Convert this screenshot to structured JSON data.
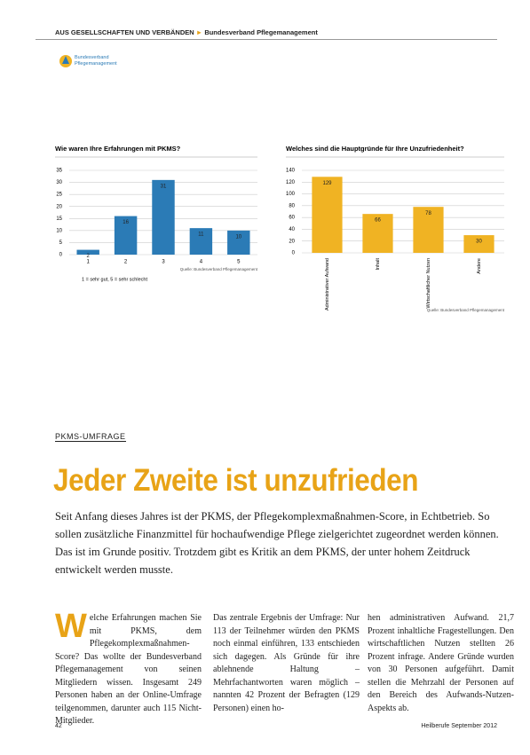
{
  "header": {
    "section": "AUS GESELLSCHAFTEN UND VERBÄNDEN",
    "subsection": "Bundesverband Pflegemanagement"
  },
  "logo": {
    "text": "Bundesverband Pflegemanagement"
  },
  "charts": [
    {
      "type": "bar",
      "title": "Wie waren Ihre Erfahrungen mit PKMS?",
      "categories": [
        "1",
        "2",
        "3",
        "4",
        "5"
      ],
      "values": [
        2,
        16,
        31,
        11,
        10
      ],
      "color": "#2b7bb6",
      "ylim": [
        0,
        35
      ],
      "yticks": [
        0,
        5,
        10,
        15,
        20,
        25,
        30,
        35
      ],
      "grid": true,
      "note": "1 = sehr gut, 5 = sehr schlecht",
      "source": "Quelle: Bundesverband Pflegemanagement"
    },
    {
      "type": "bar",
      "title": "Welches sind die Hauptgründe für Ihre Unzufriedenheit?",
      "categories": [
        "Administrativer Aufwand",
        "Inhalt",
        "Wirtschaftlicher Nutzen",
        "Andere"
      ],
      "values": [
        129,
        66,
        78,
        30
      ],
      "color": "#f0b323",
      "ylim": [
        0,
        140
      ],
      "yticks": [
        0,
        20,
        40,
        60,
        80,
        100,
        120,
        140
      ],
      "grid": true,
      "source": "Quelle: Bundesverband Pflegemanagement"
    }
  ],
  "article": {
    "kicker": "PKMS-UMFRAGE",
    "headline": "Jeder Zweite ist unzufrieden",
    "lead": "Seit Anfang dieses Jahres ist der PKMS, der Pflegekomplexmaßnahmen-Score, in Echtbetrieb. So sollen zusätzliche Finanzmittel für hochaufwendige Pflege zielgerichtet zugeordnet werden können. Das ist im Grunde positiv. Trotzdem gibt es Kritik an dem PKMS, der unter hohem Zeitdruck entwickelt werden musste.",
    "drop_cap": "W",
    "columns": [
      "elche Erfahrungen machen Sie mit PKMS, dem Pflegekomplexmaßnahmen-Score? Das wollte der Bundesverband Pflegemanagement von seinen Mitgliedern wissen. Insgesamt 249 Personen haben an der Online-Umfrage teilgenommen, darunter auch 115 Nicht-Mitglieder.",
      "Das zentrale Ergebnis der Umfrage: Nur 113 der Teilnehmer würden den PKMS noch einmal einführen, 133 entschieden sich dagegen. Als Gründe für ihre ablehnende Haltung – Mehrfachantworten waren möglich – nannten 42 Prozent der Befragten (129 Personen) einen ho-",
      "hen administrativen Aufwand. 21,7 Prozent inhaltliche Fragestellungen. Den wirtschaftlichen Nutzen stellten 26 Prozent infrage. Andere Gründe wurden von 30 Personen aufgeführt. Damit stellen die Mehrzahl der Personen auf den Bereich des Aufwands-Nutzen-Aspekts ab."
    ]
  },
  "footer": {
    "page": "42",
    "publication": "Heilberufe September 2012"
  }
}
